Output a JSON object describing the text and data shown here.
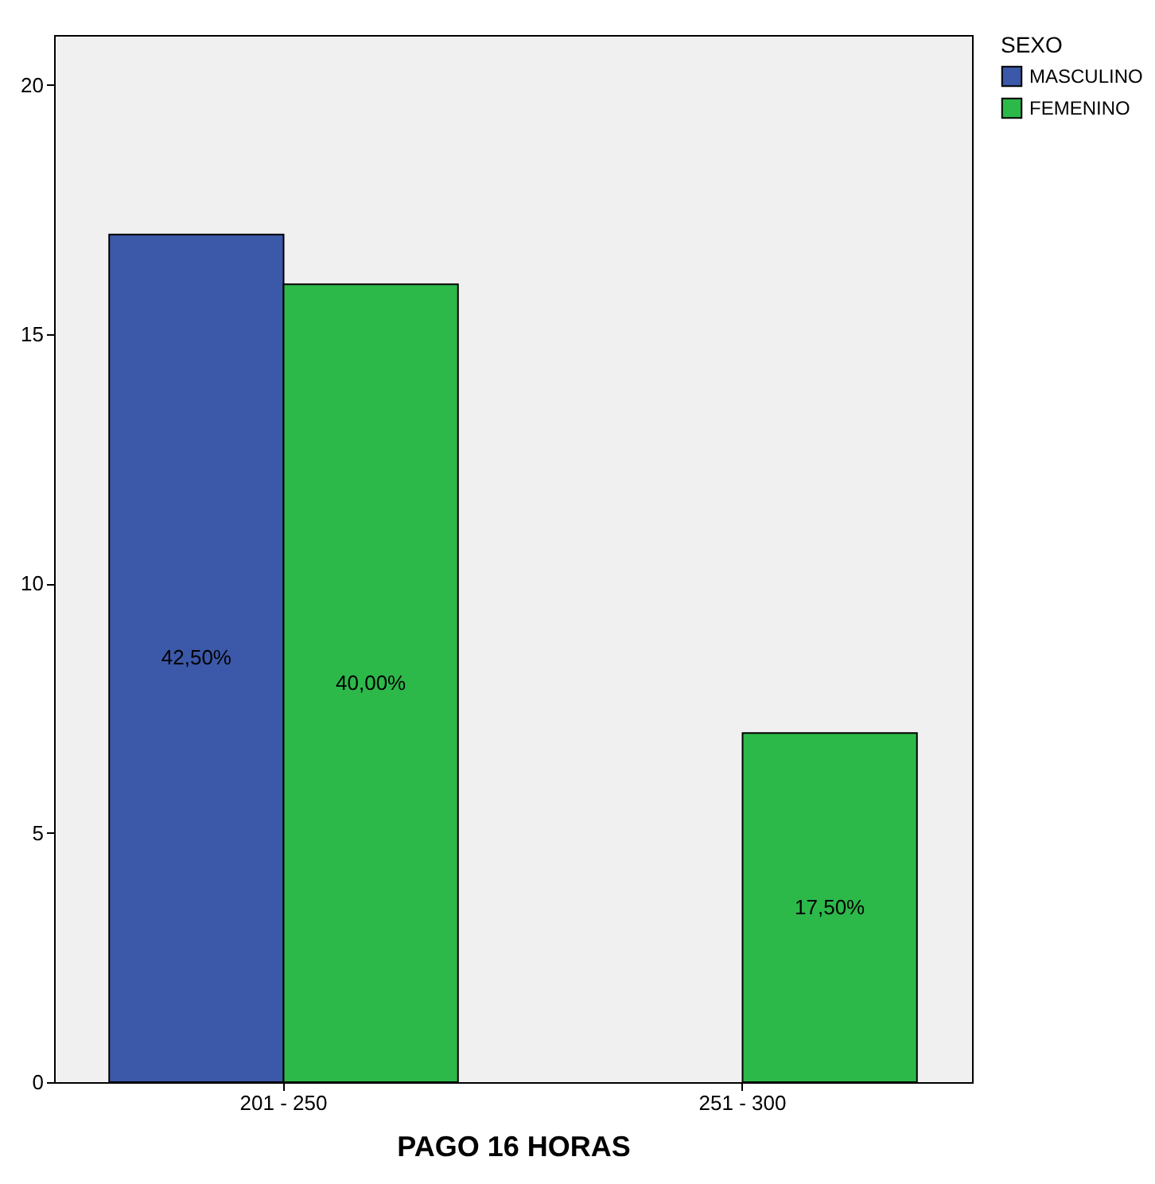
{
  "chart_data": {
    "type": "bar",
    "xlabel": "PAGO 16 HORAS",
    "legend_title": "SEXO",
    "legend": "top right",
    "categories": [
      "201 - 250",
      "251 - 300"
    ],
    "series": [
      {
        "name": "MASCULINO",
        "color": "#3c58a8",
        "values": [
          17,
          null
        ]
      },
      {
        "name": "FEMENINO",
        "color": "#2db84a",
        "values": [
          16,
          7
        ]
      }
    ],
    "annotations": [
      {
        "text": "42,50%",
        "x": "201 - 250",
        "y": 8.5
      },
      {
        "text": "40,00%",
        "x": "201 - 250",
        "y": 8
      },
      {
        "text": "17,50%",
        "x": "251 - 300",
        "y": 3.5
      }
    ],
    "ylim": [
      0,
      21
    ],
    "yticks": [
      0,
      5,
      10,
      15,
      20
    ],
    "grid": false
  }
}
